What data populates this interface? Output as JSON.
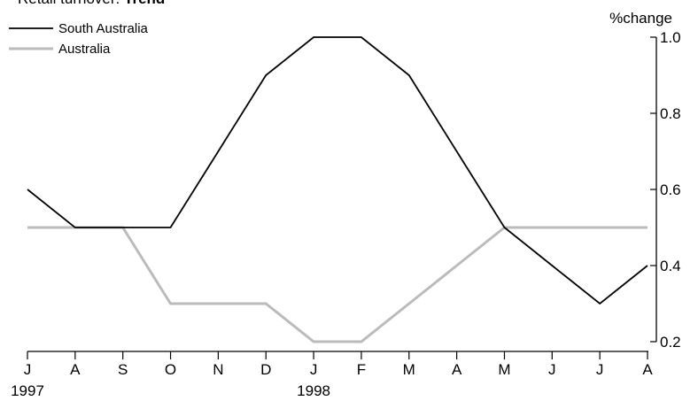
{
  "chart_data": {
    "type": "line",
    "title_prefix": "Retail turnover:",
    "title_emphasis": "Trend",
    "ylabel": "%change",
    "ylim": [
      0.2,
      1.0
    ],
    "yticks": [
      0.2,
      0.4,
      0.6,
      0.8,
      1.0
    ],
    "ytick_labels": [
      "0.2",
      "0.4",
      "0.6",
      "0.8",
      "1.0"
    ],
    "categories": [
      "J",
      "A",
      "S",
      "O",
      "N",
      "D",
      "J",
      "F",
      "M",
      "A",
      "M",
      "J",
      "J",
      "A"
    ],
    "year_labels": [
      {
        "index": 0,
        "label": "1997"
      },
      {
        "index": 6,
        "label": "1998"
      }
    ],
    "legend_position": "top-left",
    "series": [
      {
        "name": "South Australia",
        "color": "#000000",
        "values": [
          0.6,
          0.5,
          0.5,
          0.5,
          0.7,
          0.9,
          1.0,
          1.0,
          0.9,
          0.7,
          0.5,
          0.4,
          0.3,
          0.4
        ]
      },
      {
        "name": "Australia",
        "color": "#bbbbbb",
        "values": [
          0.5,
          0.5,
          0.5,
          0.3,
          0.3,
          0.3,
          0.2,
          0.2,
          0.3,
          0.4,
          0.5,
          0.5,
          0.5,
          0.5
        ]
      }
    ]
  }
}
